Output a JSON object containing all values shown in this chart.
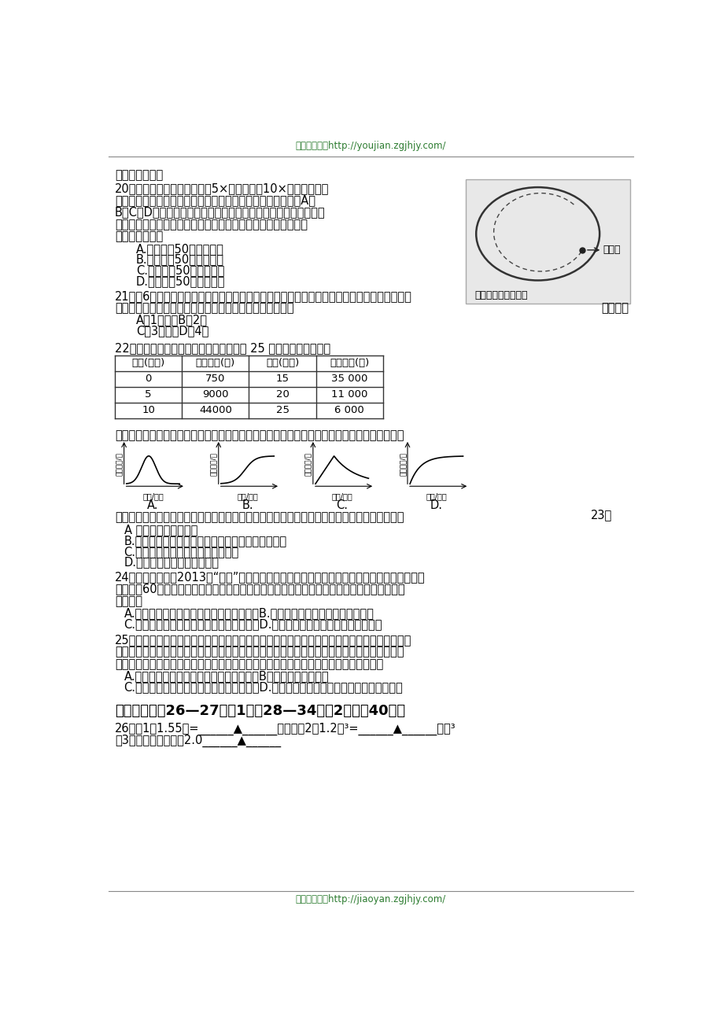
{
  "header_text": "京翰高考网：http://youjian.zgjhjy.com/",
  "footer_text": "京翰高考网：http://jiaoyan.zgjhjy.com/",
  "bg_color": "#ffffff",
  "table_headers": [
    "时间(小时)",
    "细菌数量(个)",
    "时间(小时)",
    "细菌数量(个)"
  ],
  "table_data": [
    [
      "0",
      "750",
      "15",
      "35 000"
    ],
    [
      "5",
      "9000",
      "20",
      "11 000"
    ],
    [
      "10",
      "44000",
      "25",
      "6 000"
    ]
  ],
  "graph_labels": [
    "A.",
    "B.",
    "C.",
    "D."
  ]
}
